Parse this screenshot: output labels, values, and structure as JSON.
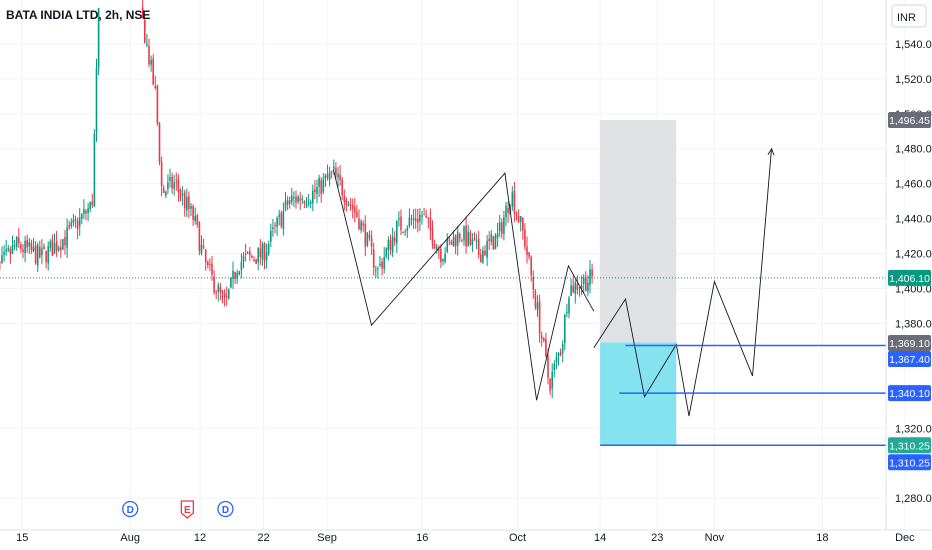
{
  "chart_data": {
    "type": "candlestick",
    "title": "BATA INDIA LTD, 2h, NSE",
    "currency": "INR",
    "ylim": [
      1268,
      1560
    ],
    "y_ticks": [
      {
        "value": 1540,
        "label": "1,540.00"
      },
      {
        "value": 1520,
        "label": "1,520.00"
      },
      {
        "value": 1500,
        "label": "1,500.00"
      },
      {
        "value": 1480,
        "label": "1,480.00"
      },
      {
        "value": 1460,
        "label": "1,460.00"
      },
      {
        "value": 1440,
        "label": "1,440.00"
      },
      {
        "value": 1420,
        "label": "1,420.00"
      },
      {
        "value": 1400,
        "label": "1,400.00"
      },
      {
        "value": 1380,
        "label": "1,380.00"
      },
      {
        "value": 1320,
        "label": "1,320.00"
      },
      {
        "value": 1280,
        "label": "1,280.00"
      }
    ],
    "x_range": [
      "2024-07-10",
      "2024-12-01"
    ],
    "x_ticks": [
      {
        "date": "2024-07-15",
        "label": "15"
      },
      {
        "date": "2024-08-01",
        "label": "Aug"
      },
      {
        "date": "2024-08-12",
        "label": "12"
      },
      {
        "date": "2024-08-22",
        "label": "22"
      },
      {
        "date": "2024-09-01",
        "label": "Sep"
      },
      {
        "date": "2024-09-16",
        "label": "16"
      },
      {
        "date": "2024-10-01",
        "label": "Oct"
      },
      {
        "date": "2024-10-14",
        "label": "14"
      },
      {
        "date": "2024-10-23",
        "label": "23"
      },
      {
        "date": "2024-11-01",
        "label": "Nov"
      },
      {
        "date": "2024-11-18",
        "label": "18"
      },
      {
        "date": "2024-12-01",
        "label": "Dec"
      }
    ],
    "price_anchors": [
      [
        "2024-07-10",
        1405
      ],
      [
        "2024-07-14",
        1425
      ],
      [
        "2024-07-18",
        1418
      ],
      [
        "2024-07-22",
        1430
      ],
      [
        "2024-07-26",
        1448
      ],
      [
        "2024-07-27",
        1555
      ],
      [
        "2024-08-03",
        1552
      ],
      [
        "2024-08-05",
        1510
      ],
      [
        "2024-08-06",
        1455
      ],
      [
        "2024-08-08",
        1460
      ],
      [
        "2024-08-11",
        1440
      ],
      [
        "2024-08-13",
        1412
      ],
      [
        "2024-08-16",
        1390
      ],
      [
        "2024-08-18",
        1415
      ],
      [
        "2024-08-22",
        1420
      ],
      [
        "2024-08-26",
        1450
      ],
      [
        "2024-08-30",
        1455
      ],
      [
        "2024-09-02",
        1466
      ],
      [
        "2024-09-06",
        1440
      ],
      [
        "2024-09-09",
        1410
      ],
      [
        "2024-09-12",
        1435
      ],
      [
        "2024-09-16",
        1442
      ],
      [
        "2024-09-19",
        1420
      ],
      [
        "2024-09-22",
        1432
      ],
      [
        "2024-09-25",
        1420
      ],
      [
        "2024-09-28",
        1430
      ],
      [
        "2024-09-30",
        1455
      ],
      [
        "2024-10-02",
        1430
      ],
      [
        "2024-10-04",
        1390
      ],
      [
        "2024-10-06",
        1345
      ],
      [
        "2024-10-08",
        1368
      ],
      [
        "2024-10-09",
        1400
      ],
      [
        "2024-10-12",
        1405
      ],
      [
        "2024-10-13",
        1406
      ]
    ],
    "current_price": {
      "value": 1406.1,
      "label": "1,406.10"
    },
    "price_labels": [
      {
        "value": 1496.45,
        "label": "1,496.45"
      },
      {
        "value": 1369.1,
        "label": "1,369.10"
      },
      {
        "value": 1367.4,
        "label": "1,367.40"
      },
      {
        "value": 1340.1,
        "label": "1,340.10"
      },
      {
        "value": 1310.25,
        "label": "1,310.25"
      },
      {
        "value": 1310.25,
        "label": "1,310.25"
      }
    ],
    "horizontal_levels": [
      {
        "value": 1367.4,
        "from": "2024-10-18"
      },
      {
        "value": 1340.1,
        "from": "2024-10-17"
      },
      {
        "value": 1310.25,
        "from": "2024-10-14"
      }
    ],
    "position_tool": {
      "from": "2024-10-14",
      "to": "2024-10-26",
      "entry": 1369.1,
      "target": 1496.45,
      "stop": 1310.25
    },
    "zigzag_history": [
      [
        "2024-09-02",
        1468
      ],
      [
        "2024-09-08",
        1379
      ],
      [
        "2024-09-29",
        1466
      ],
      [
        "2024-10-04",
        1336
      ],
      [
        "2024-10-09",
        1413
      ],
      [
        "2024-10-13",
        1387
      ]
    ],
    "projection": [
      [
        "2024-10-13",
        1366
      ],
      [
        "2024-10-18",
        1394
      ],
      [
        "2024-10-21",
        1338
      ],
      [
        "2024-10-26",
        1368
      ],
      [
        "2024-10-28",
        1327
      ],
      [
        "2024-11-01",
        1404
      ],
      [
        "2024-11-07",
        1350
      ],
      [
        "2024-11-10",
        1480
      ]
    ],
    "events": [
      {
        "date": "2024-08-01",
        "letter": "D",
        "color": "#2962ff"
      },
      {
        "date": "2024-08-10",
        "letter": "E",
        "color": "#f23645"
      },
      {
        "date": "2024-08-16",
        "letter": "D",
        "color": "#2962ff"
      }
    ]
  },
  "colors": {
    "up": "#089981",
    "down": "#f23645",
    "level_line": "#2962ff",
    "badge_gray": "#6a6d78",
    "badge_blue": "#2962ff",
    "badge_green": "#089981",
    "badge_teal": "#22ab94",
    "target_zone": "#dedfe2",
    "stop_zone": "#7ee1ef",
    "drawing": "#131722"
  }
}
